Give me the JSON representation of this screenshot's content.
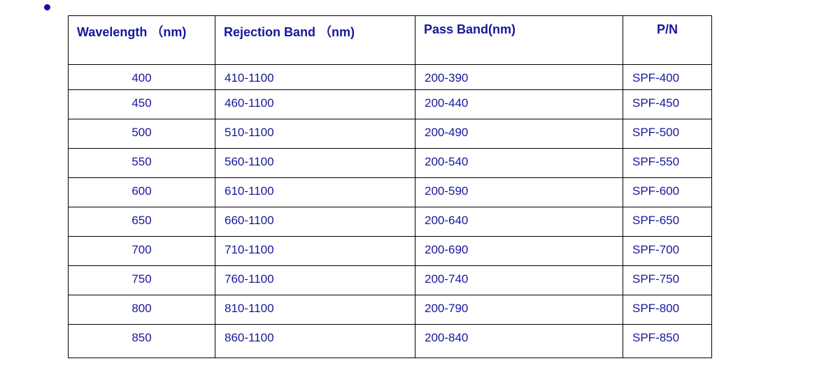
{
  "colors": {
    "text": "#17179c",
    "bullet": "#14149b",
    "table_border": "#000000",
    "background": "#ffffff"
  },
  "bullet": {
    "glyph": "•"
  },
  "table": {
    "headers": [
      "Wavelength （nm)",
      "Rejection Band （nm)",
      "Pass Band(nm)",
      "P/N"
    ],
    "rows": [
      {
        "wavelength": "400",
        "rejection_band": "410-1100",
        "pass_band": "200-390",
        "pn": "SPF-400"
      },
      {
        "wavelength": "450",
        "rejection_band": "460-1100",
        "pass_band": "200-440",
        "pn": "SPF-450"
      },
      {
        "wavelength": "500",
        "rejection_band": "510-1100",
        "pass_band": "200-490",
        "pn": "SPF-500"
      },
      {
        "wavelength": "550",
        "rejection_band": "560-1100",
        "pass_band": "200-540",
        "pn": "SPF-550"
      },
      {
        "wavelength": "600",
        "rejection_band": "610-1100",
        "pass_band": "200-590",
        "pn": "SPF-600"
      },
      {
        "wavelength": "650",
        "rejection_band": "660-1100",
        "pass_band": "200-640",
        "pn": "SPF-650"
      },
      {
        "wavelength": "700",
        "rejection_band": "710-1100",
        "pass_band": "200-690",
        "pn": "SPF-700"
      },
      {
        "wavelength": "750",
        "rejection_band": "760-1100",
        "pass_band": "200-740",
        "pn": "SPF-750"
      },
      {
        "wavelength": "800",
        "rejection_band": "810-1100",
        "pass_band": "200-790",
        "pn": "SPF-800"
      },
      {
        "wavelength": "850",
        "rejection_band": "860-1100",
        "pass_band": "200-840",
        "pn": "SPF-850"
      }
    ]
  }
}
